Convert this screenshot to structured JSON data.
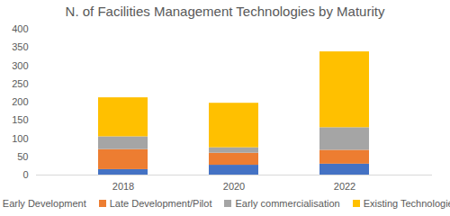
{
  "chart_data": {
    "type": "bar",
    "stacked": true,
    "title": "N. of Facilities Management Technologies by Maturity",
    "categories": [
      "2018",
      "2020",
      "2022"
    ],
    "series": [
      {
        "name": "Early Development",
        "color": "#4472c4",
        "values": [
          15,
          27,
          30
        ]
      },
      {
        "name": "Late Development/Pilot",
        "color": "#ed7d31",
        "values": [
          55,
          33,
          38
        ]
      },
      {
        "name": "Early commercialisation",
        "color": "#a5a5a5",
        "values": [
          35,
          15,
          62
        ]
      },
      {
        "name": "Existing Technologies",
        "color": "#ffc000",
        "values": [
          107,
          122,
          208
        ]
      }
    ],
    "ylim": [
      0,
      400
    ],
    "yticks": [
      0,
      50,
      100,
      150,
      200,
      250,
      300,
      350,
      400
    ],
    "grid": false,
    "legend": "bottom"
  }
}
